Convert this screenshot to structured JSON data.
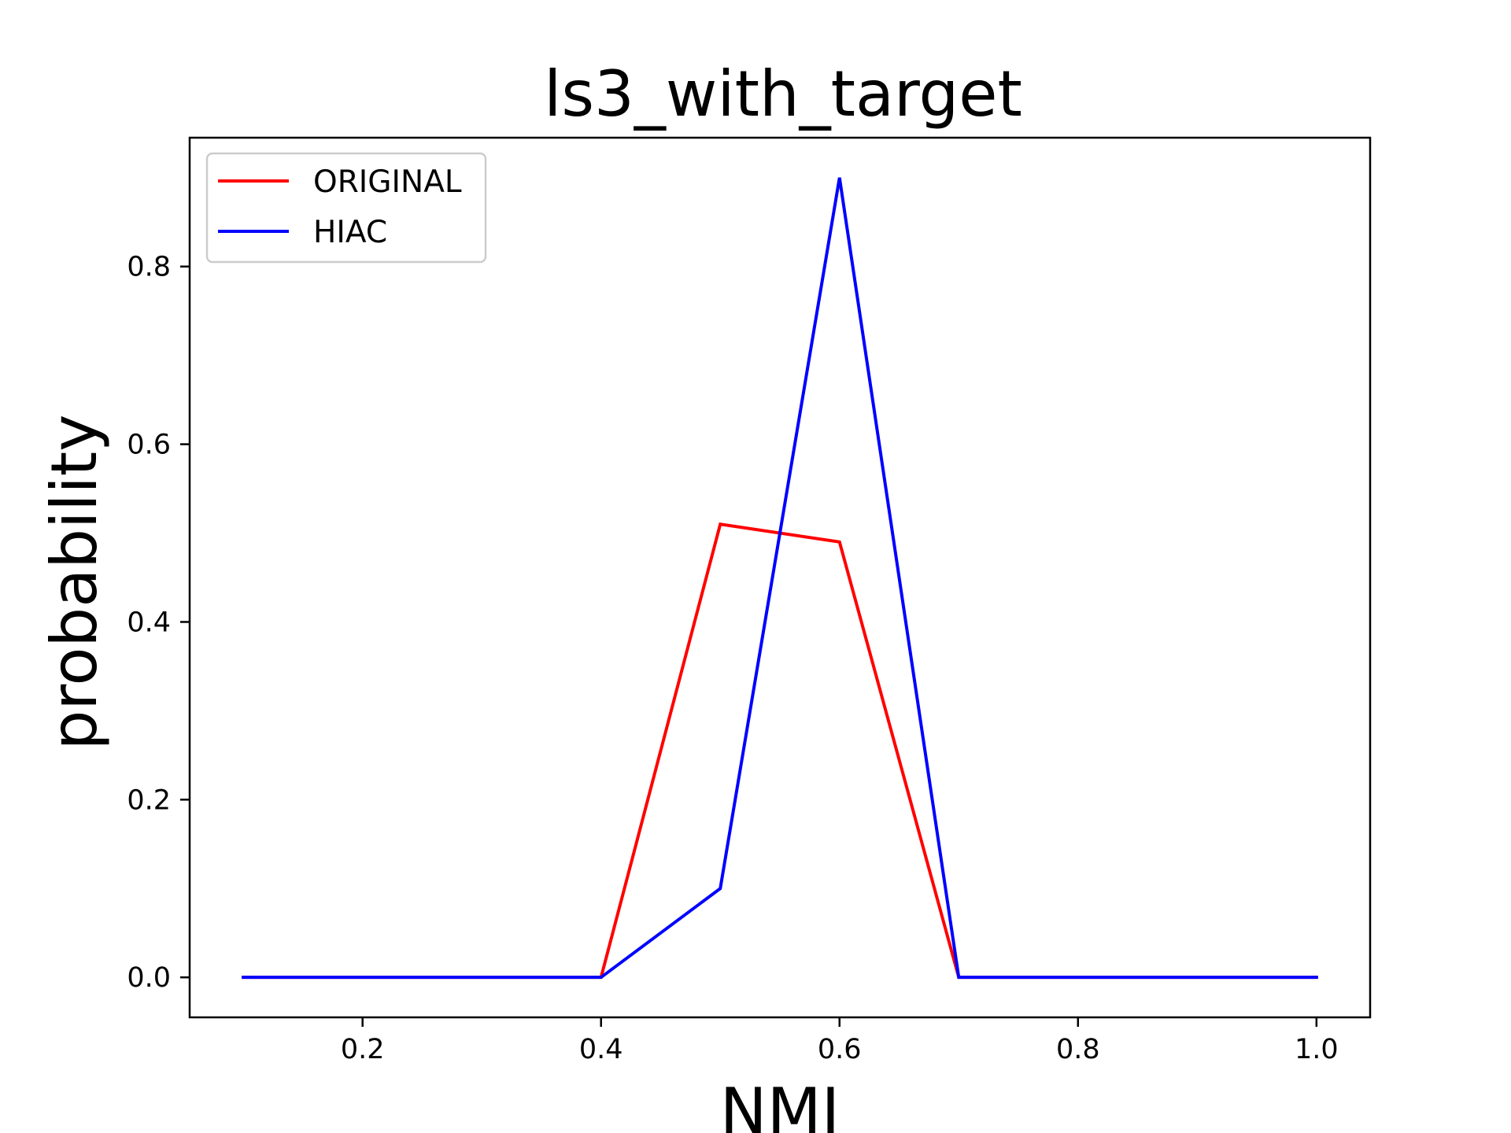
{
  "chart_data": {
    "type": "line",
    "title": "ls3_with_target",
    "xlabel": "NMI",
    "ylabel": "probability",
    "x": [
      0.1,
      0.2,
      0.3,
      0.4,
      0.5,
      0.6,
      0.7,
      0.8,
      0.9,
      1.0
    ],
    "series": [
      {
        "name": "ORIGINAL",
        "color": "#ff0000",
        "values": [
          0.0,
          0.0,
          0.0,
          0.0,
          0.51,
          0.49,
          0.0,
          0.0,
          0.0,
          0.0
        ]
      },
      {
        "name": "HIAC",
        "color": "#0000ff",
        "values": [
          0.0,
          0.0,
          0.0,
          0.0,
          0.1,
          0.9,
          0.0,
          0.0,
          0.0,
          0.0
        ]
      }
    ],
    "xlim": [
      0.055,
      1.045
    ],
    "ylim": [
      -0.045,
      0.945
    ],
    "xticks": [
      0.2,
      0.4,
      0.6,
      0.8,
      1.0
    ],
    "xtick_labels": [
      "0.2",
      "0.4",
      "0.6",
      "0.8",
      "1.0"
    ],
    "yticks": [
      0.0,
      0.2,
      0.4,
      0.6,
      0.8
    ],
    "ytick_labels": [
      "0.0",
      "0.2",
      "0.4",
      "0.6",
      "0.8"
    ],
    "grid": false,
    "legend_position": "top-left"
  }
}
